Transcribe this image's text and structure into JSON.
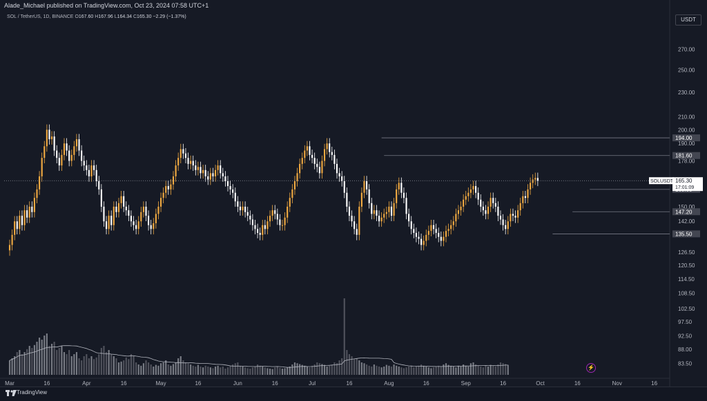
{
  "header": {
    "published_line": "Alade_Michael published on TradingView.com, Oct 23, 2024 07:58 UTC+1"
  },
  "legend": {
    "symbol": "SOL / TetherUS, 1D, BINANCE",
    "o_label": "O",
    "o_value": "167.60",
    "h_label": "H",
    "h_value": "167.96",
    "l_label": "L",
    "l_value": "164.34",
    "c_label": "C",
    "c_value": "165.30",
    "change": "−2.29 (−1.37%)"
  },
  "currency_button": "USDT",
  "footer": {
    "brand": "TradingView"
  },
  "colors": {
    "background": "#161a25",
    "up_candle": "#f0a941",
    "down_candle": "#ffffff",
    "volume_up": "#8a8d95",
    "volume_down": "#5a5d66",
    "volume_ma": "#b2b5be",
    "level_line": "#787b86",
    "price_label_bg": "#434651"
  },
  "chart_data": {
    "type": "candlestick",
    "title": "SOL / TetherUS, 1D, BINANCE",
    "x_axis": {
      "tick_labels": [
        "Mar",
        "16",
        "Apr",
        "16",
        "May",
        "16",
        "Jun",
        "16",
        "Jul",
        "16",
        "Aug",
        "16",
        "Sep",
        "16",
        "Oct",
        "16",
        "Nov",
        "16"
      ],
      "range": [
        "2024-03-01",
        "2024-11-20"
      ]
    },
    "y_axis": {
      "scale": "log",
      "tick_labels": [
        "270.00",
        "250.00",
        "230.00",
        "210.00",
        "200.00",
        "190.00",
        "178.00",
        "160.00",
        "150.00",
        "142.00",
        "135.50",
        "126.50",
        "120.50",
        "114.50",
        "108.50",
        "102.50",
        "97.50",
        "92.50",
        "88.00",
        "83.50"
      ],
      "range": [
        80,
        290
      ]
    },
    "key_levels": [
      {
        "label": "194.00",
        "value": 194.0,
        "start": "2024-07-29"
      },
      {
        "label": "181.60",
        "value": 181.6,
        "start": "2024-07-30"
      },
      {
        "label": "160.00",
        "value": 160.0,
        "start": "2024-10-21"
      },
      {
        "label": "147.20",
        "value": 147.2,
        "start": "2024-10-14"
      },
      {
        "label": "135.50",
        "value": 135.5,
        "start": "2024-10-06"
      }
    ],
    "current_price": {
      "symbol": "SOLUSDT",
      "value": "165.30",
      "countdown": "17:01:09",
      "numeric": 165.3
    },
    "close_series": {
      "start_date": "2024-03-01",
      "values": [
        130,
        135,
        142,
        138,
        145,
        140,
        148,
        144,
        150,
        147,
        155,
        160,
        168,
        180,
        188,
        200,
        193,
        195,
        185,
        180,
        175,
        182,
        190,
        185,
        178,
        182,
        188,
        193,
        185,
        178,
        175,
        172,
        168,
        175,
        172,
        165,
        160,
        150,
        142,
        138,
        145,
        140,
        150,
        147,
        152,
        156,
        150,
        148,
        145,
        142,
        140,
        138,
        142,
        147,
        150,
        145,
        140,
        138,
        141,
        146,
        150,
        155,
        158,
        162,
        160,
        163,
        168,
        175,
        180,
        186,
        183,
        180,
        176,
        178,
        175,
        172,
        174,
        170,
        172,
        168,
        166,
        170,
        168,
        172,
        175,
        170,
        168,
        165,
        162,
        160,
        158,
        153,
        150,
        148,
        150,
        147,
        145,
        143,
        140,
        138,
        136,
        135,
        140,
        138,
        142,
        145,
        148,
        146,
        143,
        140,
        140,
        144,
        150,
        155,
        160,
        165,
        170,
        176,
        180,
        185,
        188,
        182,
        180,
        176,
        174,
        170,
        178,
        186,
        190,
        184,
        182,
        176,
        170,
        168,
        165,
        158,
        150,
        145,
        142,
        138,
        135,
        150,
        158,
        165,
        160,
        152,
        146,
        148,
        145,
        142,
        144,
        146,
        147,
        150,
        145,
        152,
        160,
        164,
        158,
        155,
        146,
        142,
        138,
        136,
        134,
        133,
        130,
        132,
        135,
        137,
        140,
        138,
        136,
        134,
        132,
        134,
        137,
        138,
        140,
        142,
        146,
        148,
        150,
        154,
        156,
        158,
        160,
        162,
        158,
        154,
        150,
        148,
        146,
        150,
        155,
        152,
        150,
        145,
        143,
        140,
        138,
        142,
        146,
        145,
        144,
        148,
        152,
        156,
        155,
        160,
        164,
        166,
        167,
        165.3
      ],
      "note_volume_spike_date": "2024-08-05",
      "volume_relative": [
        0.35,
        0.4,
        0.45,
        0.55,
        0.6,
        0.5,
        0.55,
        0.62,
        0.7,
        0.65,
        0.72,
        0.8,
        0.9,
        0.85,
        0.95,
        1.0,
        0.7,
        0.75,
        0.8,
        0.6,
        0.65,
        0.7,
        0.55,
        0.5,
        0.6,
        0.45,
        0.5,
        0.55,
        0.4,
        0.35,
        0.45,
        0.5,
        0.4,
        0.45,
        0.38,
        0.42,
        0.5,
        0.65,
        0.7,
        0.55,
        0.6,
        0.5,
        0.45,
        0.4,
        0.3,
        0.32,
        0.35,
        0.42,
        0.38,
        0.5,
        0.45,
        0.3,
        0.25,
        0.22,
        0.28,
        0.35,
        0.3,
        0.25,
        0.2,
        0.24,
        0.22,
        0.28,
        0.3,
        0.35,
        0.25,
        0.22,
        0.26,
        0.3,
        0.4,
        0.45,
        0.35,
        0.3,
        0.28,
        0.25,
        0.22,
        0.2,
        0.24,
        0.2,
        0.18,
        0.22,
        0.2,
        0.18,
        0.16,
        0.2,
        0.22,
        0.18,
        0.2,
        0.15,
        0.18,
        0.22,
        0.25,
        0.28,
        0.3,
        0.22,
        0.2,
        0.18,
        0.16,
        0.15,
        0.18,
        0.2,
        0.25,
        0.22,
        0.2,
        0.18,
        0.16,
        0.15,
        0.14,
        0.18,
        0.2,
        0.17,
        0.15,
        0.16,
        0.18,
        0.2,
        0.25,
        0.3,
        0.28,
        0.26,
        0.24,
        0.22,
        0.2,
        0.18,
        0.22,
        0.25,
        0.3,
        0.28,
        0.26,
        0.24,
        0.2,
        0.22,
        0.25,
        0.3,
        0.28,
        0.35,
        0.4,
        1.85,
        0.6,
        0.5,
        0.45,
        0.38,
        0.4,
        0.35,
        0.3,
        0.28,
        0.25,
        0.22,
        0.2,
        0.25,
        0.22,
        0.2,
        0.18,
        0.2,
        0.24,
        0.22,
        0.2,
        0.25,
        0.22,
        0.2,
        0.18,
        0.16,
        0.18,
        0.2,
        0.22,
        0.18,
        0.2,
        0.22,
        0.25,
        0.22,
        0.2,
        0.18,
        0.16,
        0.18,
        0.2,
        0.22,
        0.2,
        0.25,
        0.28,
        0.24,
        0.22,
        0.2,
        0.18,
        0.22,
        0.2,
        0.25,
        0.22,
        0.2,
        0.28,
        0.3,
        0.25,
        0.22,
        0.2,
        0.18,
        0.22,
        0.2,
        0.24,
        0.22,
        0.2,
        0.25,
        0.3,
        0.28,
        0.26,
        0.24
      ]
    },
    "series": [
      {
        "name": "SOLUSDT"
      }
    ]
  }
}
